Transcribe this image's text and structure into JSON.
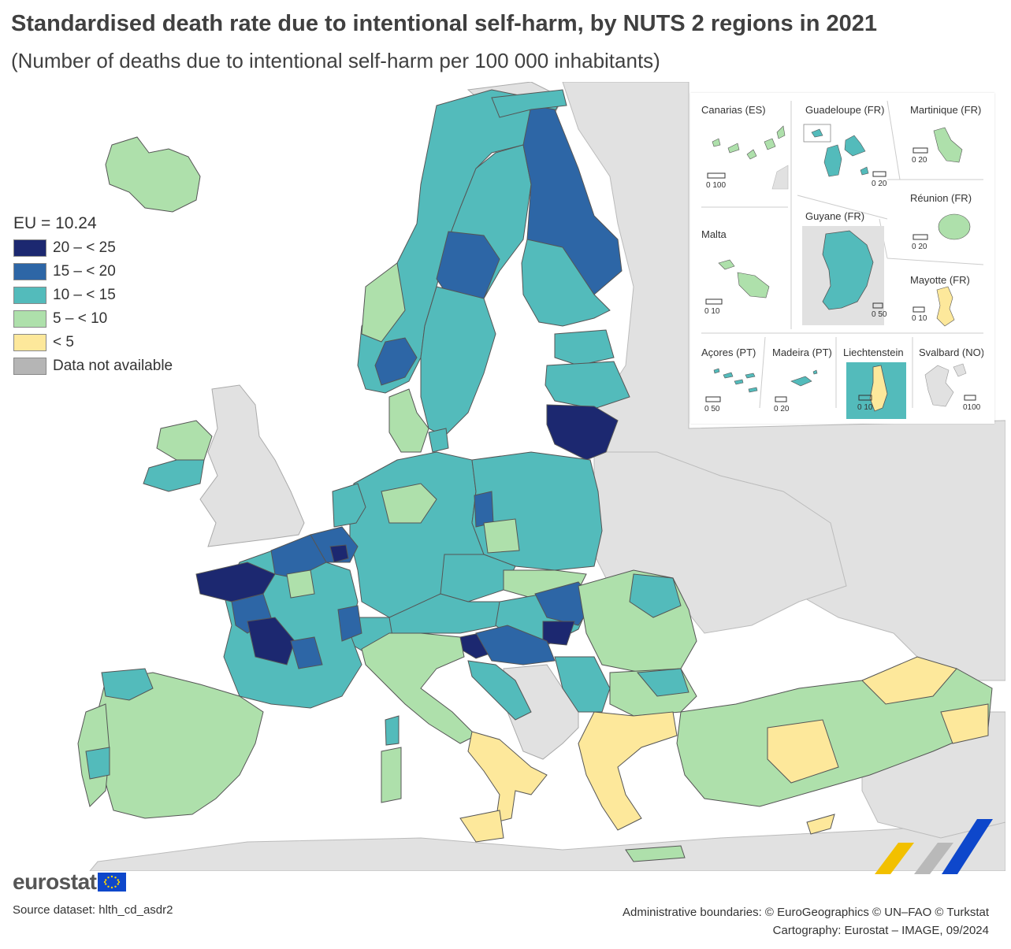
{
  "title": "Standardised death rate due to intentional self-harm, by NUTS 2 regions in 2021",
  "subtitle": "(Number of deaths due to intentional self-harm per 100 000 inhabitants)",
  "legend": {
    "eu_value": "EU = 10.24",
    "items": [
      {
        "label": "20 – < 25",
        "color": "#1c2870"
      },
      {
        "label": "15 – < 20",
        "color": "#2d66a6"
      },
      {
        "label": "10 – < 15",
        "color": "#53bbbb"
      },
      {
        "label": "5 – < 10",
        "color": "#aee0ab"
      },
      {
        "label": "< 5",
        "color": "#fde89b"
      },
      {
        "label": "Data not available",
        "color": "#b5b5b5"
      }
    ]
  },
  "colors": {
    "land_other": "#e1e1e1",
    "sea": "#ffffff",
    "border": "#555555"
  },
  "insets": {
    "canarias": {
      "title": "Canarias (ES)",
      "scale": "0   100"
    },
    "guadeloupe": {
      "title": "Guadeloupe (FR)",
      "scale": "0  20"
    },
    "martinique": {
      "title": "Martinique (FR)",
      "scale": "0  20"
    },
    "reunion": {
      "title": "Réunion (FR)",
      "scale": "0  20"
    },
    "malta": {
      "title": "Malta",
      "scale": "0  10"
    },
    "guyane": {
      "title": "Guyane (FR)",
      "scale": "0 50"
    },
    "mayotte": {
      "title": "Mayotte (FR)",
      "scale": "0  10"
    },
    "acores": {
      "title": "Açores (PT)",
      "scale": "0  50"
    },
    "madeira": {
      "title": "Madeira (PT)",
      "scale": "0  20"
    },
    "liechtenstein": {
      "title": "Liechtenstein",
      "scale": "0  10"
    },
    "svalbard": {
      "title": "Svalbard (NO)",
      "scale": "0100"
    }
  },
  "footer": {
    "logo_text": "eurostat",
    "source": "Source dataset: hlth_cd_asdr2",
    "boundaries": "Administrative boundaries: © EuroGeographics © UN–FAO © Turkstat",
    "cartography": "Cartography: Eurostat – IMAGE, 09/2024"
  }
}
